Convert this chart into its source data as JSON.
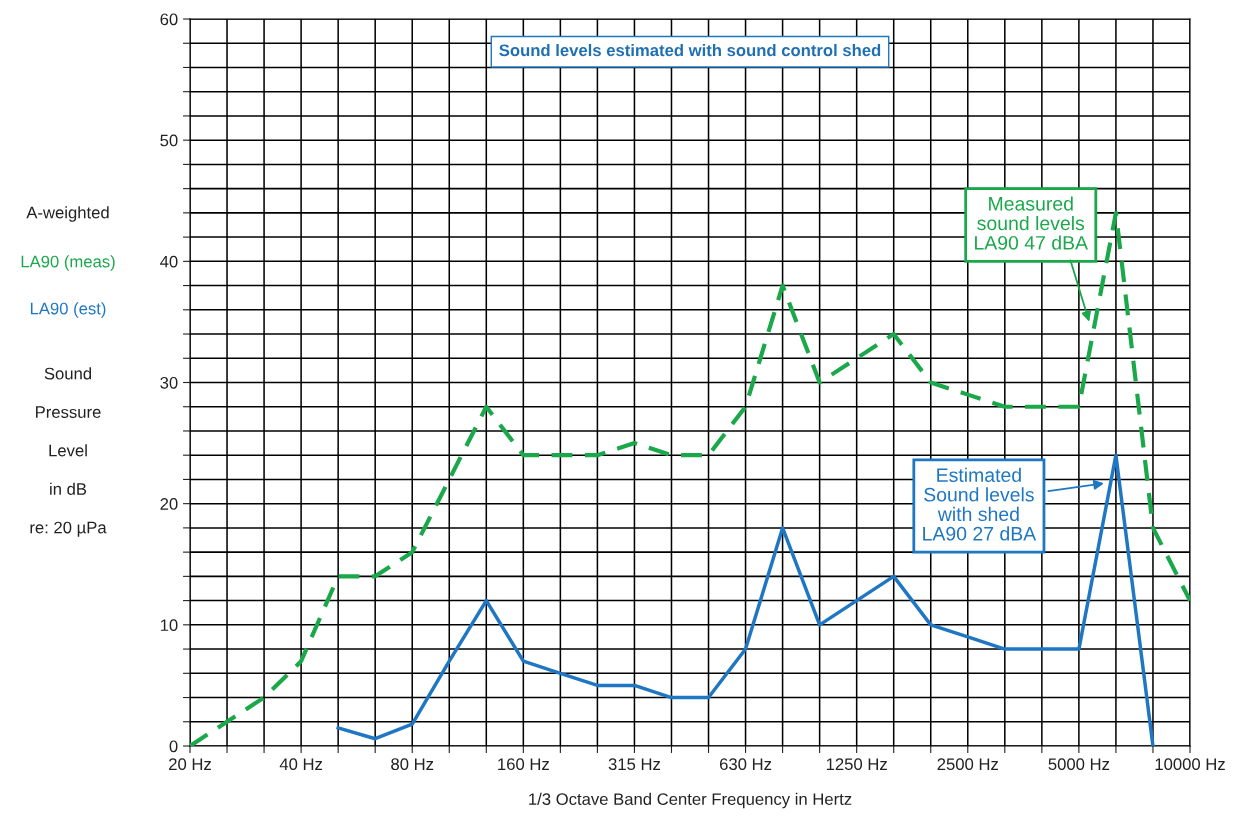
{
  "chart_data": {
    "type": "line",
    "title": "Sound levels estimated with sound control shed",
    "xlabel": "1/3 Octave Band Center Frequency in Hertz",
    "ylabel": "Sound\nPressure\nLevel\nin dB\nre: 20 µPa",
    "categories": [
      "20 Hz",
      null,
      null,
      "40 Hz",
      null,
      null,
      "80 Hz",
      null,
      null,
      "160 Hz",
      null,
      null,
      "315 Hz",
      null,
      null,
      "630 Hz",
      null,
      null,
      "1250 Hz",
      null,
      null,
      "2500 Hz",
      null,
      null,
      "5000 Hz",
      null,
      null,
      "10000 Hz"
    ],
    "series": [
      {
        "name": "LA90 (meas)",
        "color": "#1aa84a",
        "line_style": "dashed",
        "values": [
          0,
          2,
          4,
          7,
          14,
          14,
          16,
          22,
          28,
          24,
          24,
          24,
          25,
          24,
          24,
          28,
          38,
          30,
          32,
          34,
          30,
          29,
          28,
          28,
          28,
          44,
          18,
          12
        ]
      },
      {
        "name": "LA90 (est)",
        "color": "#1f77c4",
        "line_style": "solid",
        "values": [
          null,
          null,
          null,
          null,
          1.5,
          0.6,
          1.8,
          7,
          12,
          7,
          6,
          5,
          5,
          4,
          4,
          8,
          18,
          10,
          12,
          14,
          10,
          9,
          8,
          8,
          8,
          24,
          0,
          null
        ]
      }
    ],
    "ylim": [
      0,
      60
    ],
    "yticks": [
      0,
      {
        "value": 2,
        "label": null
      },
      {
        "value": 4,
        "label": null
      },
      {
        "value": 6,
        "label": null
      },
      {
        "value": 8,
        "label": null
      },
      10,
      {
        "value": 12,
        "label": null
      },
      {
        "value": 14,
        "label": null
      },
      {
        "value": 16,
        "label": null
      },
      {
        "value": 18,
        "label": null
      },
      20,
      {
        "value": 22,
        "label": null
      },
      {
        "value": 24,
        "label": null
      },
      {
        "value": 26,
        "label": null
      },
      {
        "value": 28,
        "label": null
      },
      30,
      {
        "value": 32,
        "label": null
      },
      {
        "value": 34,
        "label": null
      },
      {
        "value": 36,
        "label": null
      },
      {
        "value": 38,
        "label": null
      },
      40,
      {
        "value": 42,
        "label": null
      },
      {
        "value": 44,
        "label": null
      },
      {
        "value": 46,
        "label": null
      },
      {
        "value": 48,
        "label": null
      },
      50,
      {
        "value": 52,
        "label": null
      },
      {
        "value": 54,
        "label": null
      },
      {
        "value": 56,
        "label": null
      },
      {
        "value": 58,
        "label": null
      },
      60
    ],
    "grid": true,
    "legend": "left",
    "annotations": [
      "A-weighted",
      "Measured\nsound levels\nLA90 47 dBA",
      "Estimated\nSound levels\nwith shed\nLA90 27 dBA"
    ]
  }
}
